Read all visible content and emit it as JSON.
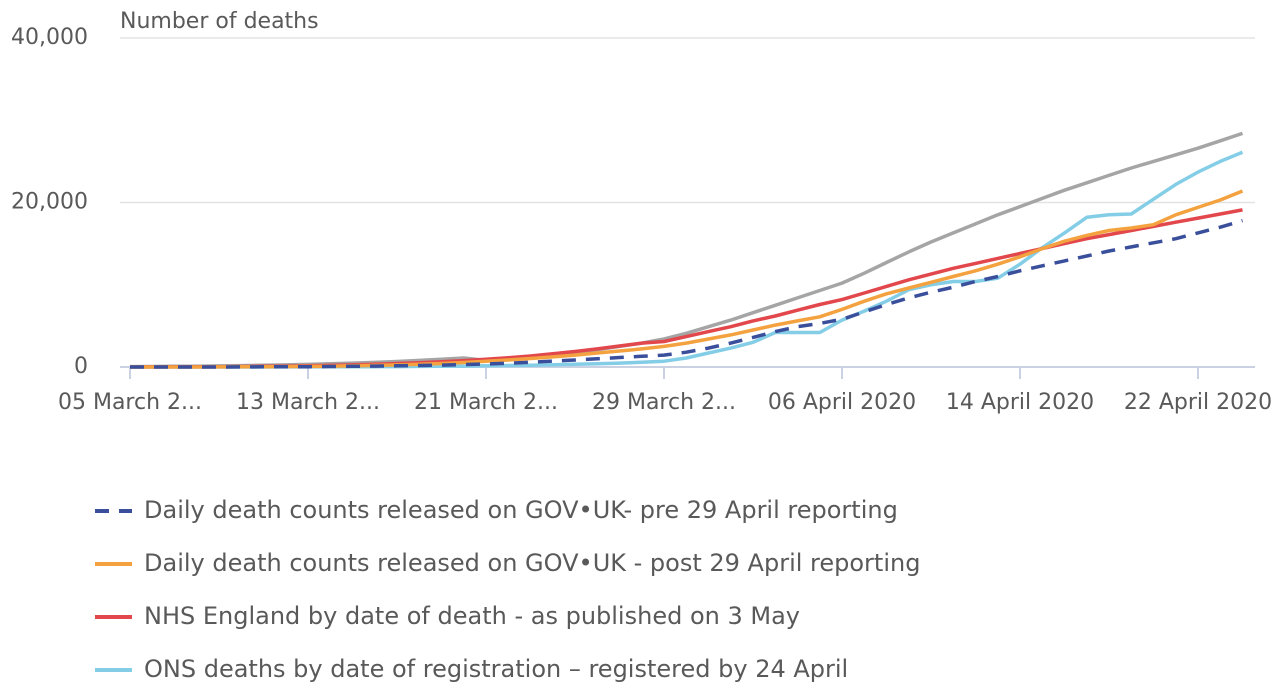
{
  "chart_data": {
    "type": "line",
    "ylabel": "Number of deaths",
    "categories": [
      "05 March 2...",
      null,
      null,
      null,
      null,
      null,
      null,
      null,
      "13 March 2...",
      null,
      null,
      null,
      null,
      null,
      null,
      null,
      "21 March 2...",
      null,
      null,
      null,
      null,
      null,
      null,
      null,
      "29 March 2...",
      null,
      null,
      null,
      null,
      null,
      null,
      null,
      "06 April 2020",
      null,
      null,
      null,
      null,
      null,
      null,
      null,
      "14 April 2020",
      null,
      null,
      null,
      null,
      null,
      null,
      null,
      "22 April 2020",
      null,
      null
    ],
    "ylim": [
      0,
      40000
    ],
    "yticks": [
      0,
      {
        "value": 20000,
        "label": "20,000"
      },
      {
        "value": 40000,
        "label": "40,000"
      }
    ],
    "grid": true,
    "series": [
      {
        "color": "#a5a5a5",
        "values": [
          50,
          60,
          80,
          100,
          130,
          170,
          210,
          260,
          320,
          390,
          470,
          560,
          670,
          800,
          950,
          1100,
          800,
          1000,
          1200,
          1450,
          1750,
          2100,
          2500,
          2900,
          3400,
          4100,
          4900,
          5700,
          6600,
          7500,
          8400,
          9300,
          10200,
          11400,
          12700,
          14000,
          15200,
          16300,
          17400,
          18500,
          19500,
          20500,
          21500,
          22400,
          23300,
          24200,
          25000,
          25800,
          26600,
          27500,
          28400
        ]
      },
      {
        "name": "ONS deaths by date of registration – registered by 24 April",
        "color": "#84cde6",
        "values": [
          0,
          0,
          0,
          0,
          0,
          0,
          0,
          10,
          10,
          20,
          30,
          40,
          50,
          70,
          90,
          110,
          140,
          180,
          220,
          270,
          330,
          400,
          480,
          570,
          700,
          1100,
          1700,
          2300,
          3000,
          4200,
          4200,
          4200,
          5700,
          6800,
          8000,
          9400,
          10000,
          10400,
          10400,
          10800,
          12500,
          14500,
          16300,
          18200,
          18500,
          18600,
          20400,
          22200,
          23700,
          25000,
          26100
        ]
      },
      {
        "name": "NHS England by date of death - as published on 3 May",
        "color": "#e2474c",
        "values": [
          10,
          10,
          20,
          30,
          40,
          60,
          80,
          110,
          150,
          200,
          260,
          330,
          420,
          520,
          640,
          780,
          940,
          1120,
          1340,
          1600,
          1880,
          2200,
          2550,
          2900,
          3100,
          3700,
          4300,
          4900,
          5600,
          6200,
          6900,
          7600,
          8200,
          9000,
          9800,
          10600,
          11300,
          12000,
          12600,
          13200,
          13800,
          14400,
          15000,
          15600,
          16100,
          16600,
          17100,
          17600,
          18100,
          18600,
          19100
        ]
      },
      {
        "name": "Daily death counts released on GOV•UK - post 29 April reporting",
        "color": "#f4a23f",
        "values": [
          0,
          0,
          0,
          0,
          10,
          20,
          30,
          50,
          70,
          100,
          140,
          190,
          250,
          330,
          430,
          550,
          690,
          850,
          1030,
          1230,
          1450,
          1700,
          1950,
          2200,
          2500,
          2900,
          3400,
          3900,
          4500,
          5100,
          5600,
          6100,
          7000,
          8000,
          8900,
          9600,
          10300,
          11000,
          11700,
          12500,
          13400,
          14400,
          15300,
          16000,
          16600,
          16900,
          17300,
          18500,
          19400,
          20300,
          21400
        ]
      },
      {
        "name": "Daily death counts released on GOV•UK- pre 29 April reporting",
        "color": "#3a4f9b",
        "dashed": true,
        "values": [
          0,
          0,
          0,
          0,
          0,
          10,
          20,
          30,
          40,
          60,
          80,
          110,
          140,
          180,
          230,
          290,
          360,
          460,
          580,
          720,
          850,
          1000,
          1150,
          1300,
          1450,
          1800,
          2300,
          2900,
          3600,
          4300,
          4900,
          5300,
          5800,
          6700,
          7600,
          8400,
          9100,
          9700,
          10400,
          11000,
          11700,
          12300,
          12900,
          13500,
          14100,
          14600,
          15100,
          15600,
          16300,
          17000,
          17800
        ]
      }
    ]
  }
}
